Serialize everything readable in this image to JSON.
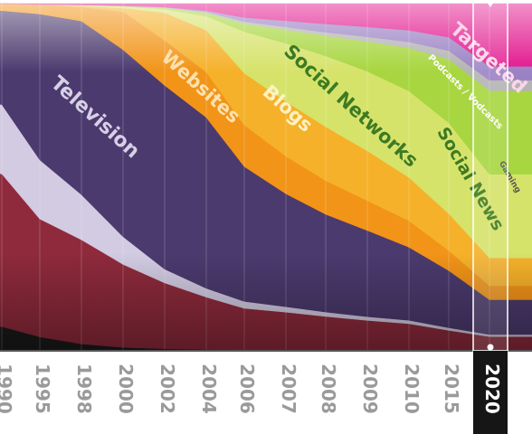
{
  "chart_data": {
    "type": "area",
    "title": "",
    "xlabel": "",
    "ylabel": "",
    "stacked": true,
    "normalized": true,
    "grid": true,
    "x": [
      "1990",
      "1995",
      "1998",
      "2000",
      "2002",
      "2004",
      "2006",
      "2007",
      "2008",
      "2009",
      "2010",
      "2015",
      "2020"
    ],
    "highlight_x": "2020",
    "series": [
      {
        "name": "",
        "color": "#1a1a1a",
        "values": [
          7,
          4,
          2,
          1,
          0.6,
          0.4,
          0.3,
          0.3,
          0.2,
          0.2,
          0.2,
          0.1,
          0.1
        ]
      },
      {
        "name": "",
        "color": "#8e2a3c",
        "values": [
          44,
          34,
          30,
          24,
          19,
          15,
          12,
          11,
          10,
          9,
          8,
          6,
          4
        ]
      },
      {
        "name": "",
        "color": "#d2cbe2",
        "values": [
          20,
          17,
          13,
          8,
          4,
          2.5,
          2,
          1.6,
          1.3,
          1.1,
          1,
          0.8,
          0.6
        ]
      },
      {
        "name": "Television",
        "color": "#4b3a6e",
        "values": [
          27,
          42,
          50,
          54,
          53,
          49,
          39,
          33,
          29,
          26,
          22,
          17,
          10
        ]
      },
      {
        "name": "Websites",
        "color": "#f29418",
        "values": [
          2,
          2.8,
          4,
          11,
          13,
          13,
          12,
          11,
          10,
          9,
          8,
          6,
          4
        ]
      },
      {
        "name": "Blogs",
        "color": "#f5b12a",
        "values": [
          0,
          0,
          0.4,
          1,
          8,
          12,
          15,
          16,
          16,
          15,
          13,
          11,
          8
        ]
      },
      {
        "name": "Social Networks",
        "color": "#d6e36a",
        "values": [
          0,
          0,
          0.2,
          0.5,
          1,
          4,
          12,
          17,
          21,
          24,
          26,
          27,
          24
        ]
      },
      {
        "name": "Social News",
        "color": "#a8d640",
        "values": [
          0,
          0,
          0,
          0.2,
          0.4,
          1,
          2.4,
          4,
          6,
          9,
          13,
          19,
          24
        ]
      },
      {
        "name": "Gaming",
        "color": "#b4b4b4",
        "values": [
          0,
          0,
          0,
          0,
          0.1,
          0.2,
          0.5,
          0.8,
          1,
          1.4,
          1.8,
          2.5,
          3
        ]
      },
      {
        "name": "Podcasts / Vodcasts",
        "color": "#9b82c4",
        "values": [
          0,
          0,
          0,
          0,
          0.1,
          0.4,
          1.2,
          1.8,
          2.5,
          3,
          3.5,
          4,
          4
        ]
      },
      {
        "name": "Targeted",
        "color": "#e2168d",
        "values": [
          0,
          0.2,
          0.4,
          0.6,
          1,
          2,
          4,
          5,
          6,
          7,
          8,
          10,
          18
        ]
      }
    ]
  }
}
